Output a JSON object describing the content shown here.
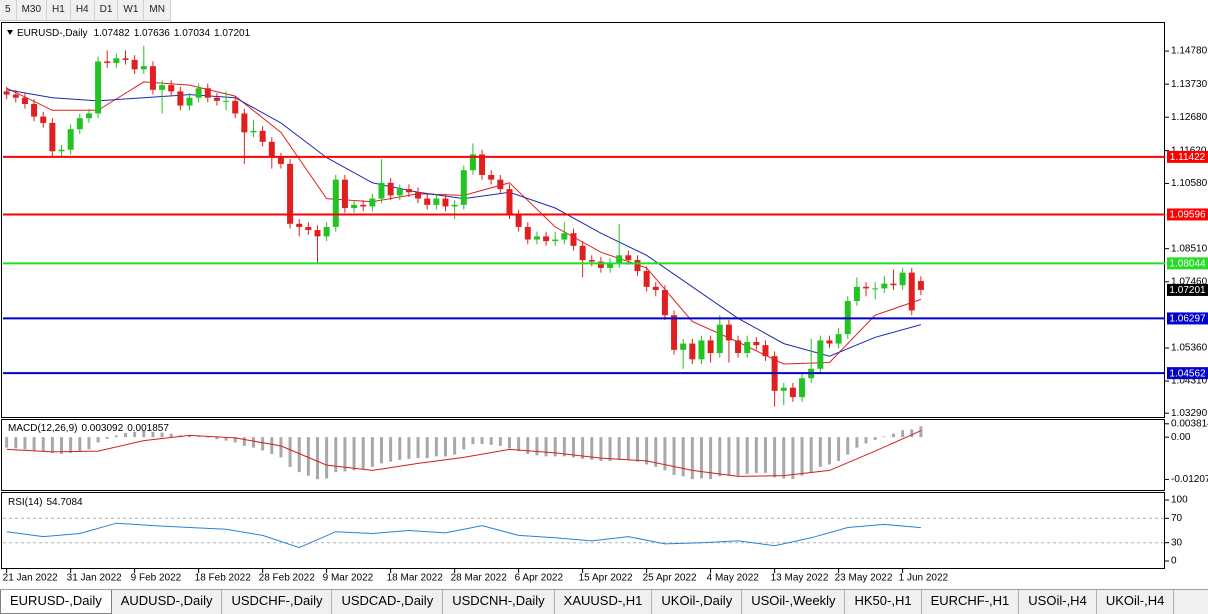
{
  "toolbar": [
    "5",
    "M30",
    "H1",
    "H4",
    "D1",
    "W1",
    "MN"
  ],
  "tabs": [
    "EURUSD-,Daily",
    "AUDUSD-,Daily",
    "USDCHF-,Daily",
    "USDCAD-,Daily",
    "USDCNH-,Daily",
    "XAUUSD-,H1",
    "UKOil-,Daily",
    "USOil-,Weekly",
    "HK50-,H1",
    "EURCHF-,H1",
    "USOil-,H4",
    "UKOil-,H4"
  ],
  "chart_data": [
    {
      "type": "candlestick",
      "title": "EURUSD-,Daily",
      "up_color": "#22c322",
      "down_color": "#e02020",
      "open": [
        1.135,
        1.134,
        1.133,
        1.131,
        1.127,
        1.125,
        1.116,
        1.1165,
        1.123,
        1.1265,
        1.128,
        1.1445,
        1.144,
        1.1455,
        1.145,
        1.142,
        1.143,
        1.1355,
        1.137,
        1.135,
        1.1305,
        1.133,
        1.136,
        1.133,
        1.132,
        1.132,
        1.128,
        1.122,
        1.1225,
        1.119,
        1.114,
        1.112,
        1.093,
        1.092,
        1.091,
        1.089,
        1.092,
        1.107,
        1.098,
        1.099,
        1.0985,
        1.101,
        1.106,
        1.102,
        1.104,
        1.103,
        1.101,
        1.099,
        1.101,
        1.0985,
        1.099,
        1.11,
        1.115,
        1.1085,
        1.107,
        1.104,
        1.096,
        1.092,
        1.088,
        1.089,
        1.0875,
        1.088,
        1.09,
        1.086,
        1.0815,
        1.081,
        1.079,
        1.0805,
        1.083,
        1.0815,
        1.078,
        1.073,
        1.072,
        1.064,
        1.053,
        1.055,
        1.05,
        1.056,
        1.052,
        1.061,
        1.056,
        1.052,
        1.0555,
        1.0545,
        1.051,
        1.04,
        1.041,
        1.038,
        1.044,
        1.047,
        1.056,
        1.055,
        1.058,
        1.0685,
        1.073,
        1.0725,
        1.0725,
        1.074,
        1.0735,
        1.0775,
        1.07482
      ],
      "high": [
        1.1365,
        1.1355,
        1.1345,
        1.1325,
        1.1285,
        1.1265,
        1.118,
        1.1245,
        1.128,
        1.1295,
        1.146,
        1.148,
        1.147,
        1.148,
        1.1465,
        1.1495,
        1.1445,
        1.1385,
        1.1385,
        1.1365,
        1.1345,
        1.1375,
        1.1375,
        1.1345,
        1.135,
        1.1335,
        1.1295,
        1.126,
        1.124,
        1.1205,
        1.1155,
        1.1135,
        1.0945,
        1.0935,
        1.0925,
        1.0935,
        1.1085,
        1.1085,
        1.1005,
        1.1005,
        1.1025,
        1.1135,
        1.1075,
        1.1055,
        1.1055,
        1.1045,
        1.1025,
        1.1025,
        1.1025,
        1.1005,
        1.1115,
        1.1185,
        1.1165,
        1.11,
        1.1085,
        1.1055,
        1.0975,
        1.0935,
        1.0905,
        1.0905,
        1.0905,
        1.0935,
        1.0915,
        1.0875,
        1.083,
        1.0825,
        1.082,
        1.093,
        1.0845,
        1.083,
        1.0795,
        1.0745,
        1.0735,
        1.0655,
        1.0565,
        1.0565,
        1.0575,
        1.0575,
        1.064,
        1.0625,
        1.0575,
        1.0575,
        1.057,
        1.056,
        1.0525,
        1.0425,
        1.0425,
        1.0455,
        1.0565,
        1.0575,
        1.0575,
        1.06,
        1.07,
        1.076,
        1.0745,
        1.0745,
        1.0765,
        1.0785,
        1.079,
        1.079,
        1.07636
      ],
      "low": [
        1.1325,
        1.1315,
        1.1295,
        1.1255,
        1.1235,
        1.1145,
        1.1145,
        1.115,
        1.1215,
        1.125,
        1.1265,
        1.1425,
        1.1425,
        1.1435,
        1.1405,
        1.1405,
        1.134,
        1.128,
        1.1335,
        1.129,
        1.129,
        1.1315,
        1.1315,
        1.1305,
        1.129,
        1.1265,
        1.112,
        1.1205,
        1.1175,
        1.1105,
        1.1105,
        1.0915,
        1.089,
        1.0895,
        1.0805,
        1.0875,
        1.0905,
        1.0965,
        1.0965,
        1.097,
        1.097,
        1.0995,
        1.1005,
        1.1005,
        1.1015,
        1.0995,
        1.0975,
        1.0975,
        1.097,
        1.0945,
        1.0975,
        1.1085,
        1.107,
        1.1055,
        1.1025,
        1.0945,
        1.0905,
        1.0865,
        1.0865,
        1.086,
        1.086,
        1.0865,
        1.0845,
        1.076,
        1.0795,
        1.0775,
        1.0775,
        1.079,
        1.08,
        1.0765,
        1.0715,
        1.07,
        1.0625,
        1.0515,
        1.047,
        1.0485,
        1.0485,
        1.049,
        1.0505,
        1.049,
        1.0505,
        1.0505,
        1.053,
        1.0495,
        1.035,
        1.0355,
        1.0365,
        1.0365,
        1.0425,
        1.0455,
        1.0535,
        1.0535,
        1.0565,
        1.067,
        1.07,
        1.069,
        1.071,
        1.072,
        1.072,
        1.064,
        1.07034
      ],
      "close": [
        1.134,
        1.133,
        1.131,
        1.127,
        1.125,
        1.116,
        1.1165,
        1.123,
        1.1265,
        1.128,
        1.1445,
        1.144,
        1.1455,
        1.145,
        1.142,
        1.143,
        1.1355,
        1.137,
        1.135,
        1.1305,
        1.133,
        1.136,
        1.133,
        1.132,
        1.132,
        1.128,
        1.122,
        1.1225,
        1.119,
        1.114,
        1.112,
        1.093,
        1.092,
        1.091,
        1.089,
        1.092,
        1.107,
        1.098,
        1.099,
        1.0985,
        1.101,
        1.106,
        1.102,
        1.104,
        1.103,
        1.101,
        1.099,
        1.101,
        1.0985,
        1.099,
        1.11,
        1.115,
        1.1085,
        1.107,
        1.104,
        1.096,
        1.092,
        1.088,
        1.089,
        1.0875,
        1.088,
        1.09,
        1.086,
        1.0815,
        1.081,
        1.079,
        1.0805,
        1.083,
        1.0815,
        1.078,
        1.073,
        1.072,
        1.064,
        1.053,
        1.055,
        1.05,
        1.056,
        1.052,
        1.061,
        1.056,
        1.052,
        1.0555,
        1.0545,
        1.051,
        1.04,
        1.041,
        1.038,
        1.044,
        1.047,
        1.056,
        1.055,
        1.058,
        1.0685,
        1.073,
        1.0725,
        1.0725,
        1.074,
        1.0735,
        1.0775,
        1.0655,
        1.07201
      ],
      "moving_averages": [
        {
          "color": "#e02020",
          "x": [
            0,
            5,
            10,
            15,
            20,
            25,
            30,
            35,
            40,
            45,
            50,
            55,
            60,
            65,
            70,
            75,
            80,
            85,
            90,
            95,
            100
          ],
          "values": [
            1.136,
            1.129,
            1.129,
            1.138,
            1.137,
            1.1335,
            1.122,
            1.101,
            1.1,
            1.1025,
            1.102,
            1.106,
            1.092,
            1.084,
            1.079,
            1.062,
            1.0555,
            1.0485,
            1.049,
            1.064,
            1.069
          ]
        },
        {
          "color": "#1c2ab0",
          "x": [
            0,
            5,
            10,
            15,
            20,
            25,
            30,
            35,
            40,
            45,
            50,
            55,
            60,
            65,
            70,
            75,
            80,
            85,
            90,
            95,
            100
          ],
          "values": [
            1.1355,
            1.133,
            1.132,
            1.133,
            1.134,
            1.133,
            1.125,
            1.114,
            1.106,
            1.103,
            1.101,
            1.103,
            1.098,
            1.09,
            1.083,
            1.073,
            1.063,
            1.055,
            1.051,
            1.057,
            1.061
          ]
        }
      ],
      "levels": [
        {
          "value": 1.11422,
          "color": "#ff0000"
        },
        {
          "value": 1.09596,
          "color": "#ff0000"
        },
        {
          "value": 1.08044,
          "color": "#22dd22"
        },
        {
          "value": 1.06297,
          "color": "#0000cc"
        },
        {
          "value": 1.04562,
          "color": "#0000cc"
        }
      ],
      "xlim": [
        -0.4,
        126.7
      ],
      "ylim": [
        1.0317,
        1.1567
      ],
      "xticks": [
        {
          "value": 0,
          "label": "21 Jan 2022"
        },
        {
          "value": 7,
          "label": "31 Jan 2022"
        },
        {
          "value": 14,
          "label": "9 Feb 2022"
        },
        {
          "value": 21,
          "label": "18 Feb 2022"
        },
        {
          "value": 28,
          "label": "28 Feb 2022"
        },
        {
          "value": 35,
          "label": "9 Mar 2022"
        },
        {
          "value": 42,
          "label": "18 Mar 2022"
        },
        {
          "value": 49,
          "label": "28 Mar 2022"
        },
        {
          "value": 56,
          "label": "6 Apr 2022"
        },
        {
          "value": 63,
          "label": "15 Apr 2022"
        },
        {
          "value": 70,
          "label": "25 Apr 2022"
        },
        {
          "value": 77,
          "label": "4 May 2022"
        },
        {
          "value": 84,
          "label": "13 May 2022"
        },
        {
          "value": 91,
          "label": "23 May 2022"
        },
        {
          "value": 98,
          "label": "1 Jun 2022"
        }
      ],
      "yticks": [
        {
          "value": 1.1478,
          "label": "1.14780"
        },
        {
          "value": 1.1373,
          "label": "1.13730"
        },
        {
          "value": 1.1268,
          "label": "1.12680"
        },
        {
          "value": 1.1162,
          "label": "1.11620"
        },
        {
          "value": 1.1058,
          "label": "1.10580"
        },
        {
          "value": 1.0851,
          "label": "1.08510"
        },
        {
          "value": 1.0746,
          "label": "1.07460"
        },
        {
          "value": 1.0536,
          "label": "1.05360"
        },
        {
          "value": 1.0431,
          "label": "1.04310"
        },
        {
          "value": 1.0329,
          "label": "1.03290"
        }
      ]
    },
    {
      "type": "macd",
      "title": "MACD(12,26,9)",
      "histogram_color": "#a8a8a8",
      "histogram": [
        -0.003,
        -0.0032,
        -0.0035,
        -0.0038,
        -0.004,
        -0.0045,
        -0.0048,
        -0.0045,
        -0.004,
        -0.0035,
        -0.0015,
        -0.0005,
        0.0005,
        0.0012,
        0.0015,
        0.0018,
        0.0015,
        0.0013,
        0.001,
        0.0005,
        0.0003,
        0.0002,
        -0.0002,
        -0.0006,
        -0.001,
        -0.0015,
        -0.0025,
        -0.003,
        -0.0038,
        -0.0048,
        -0.0058,
        -0.0085,
        -0.01,
        -0.011,
        -0.012,
        -0.0118,
        -0.01,
        -0.0098,
        -0.0095,
        -0.0092,
        -0.0085,
        -0.0075,
        -0.007,
        -0.0065,
        -0.0062,
        -0.006,
        -0.006,
        -0.0055,
        -0.0055,
        -0.005,
        -0.0035,
        -0.002,
        -0.002,
        -0.0022,
        -0.0025,
        -0.0032,
        -0.004,
        -0.0048,
        -0.0052,
        -0.0055,
        -0.0055,
        -0.0055,
        -0.0058,
        -0.0062,
        -0.0065,
        -0.0068,
        -0.0068,
        -0.0065,
        -0.0066,
        -0.007,
        -0.0078,
        -0.0085,
        -0.0095,
        -0.0108,
        -0.0112,
        -0.012,
        -0.0118,
        -0.012,
        -0.0112,
        -0.011,
        -0.011,
        -0.0105,
        -0.0102,
        -0.0102,
        -0.0115,
        -0.0118,
        -0.012,
        -0.011,
        -0.01,
        -0.0085,
        -0.0078,
        -0.0068,
        -0.005,
        -0.003,
        -0.0018,
        -0.0008,
        0.0002,
        0.001,
        0.002,
        0.0022,
        0.003092
      ],
      "signal": {
        "color": "#d02020",
        "x": [
          0,
          5,
          10,
          15,
          20,
          25,
          30,
          35,
          40,
          45,
          50,
          55,
          60,
          65,
          70,
          75,
          80,
          85,
          90,
          95,
          100
        ],
        "values": [
          -0.0035,
          -0.0042,
          -0.004,
          -0.001,
          0.0005,
          -0.0002,
          -0.0025,
          -0.008,
          -0.0095,
          -0.0075,
          -0.0058,
          -0.0035,
          -0.0045,
          -0.006,
          -0.0068,
          -0.0095,
          -0.0112,
          -0.011,
          -0.0095,
          -0.004,
          0.001857
        ]
      },
      "ylim": [
        -0.0151,
        0.0049
      ],
      "yticks": [
        0.003814,
        {
          "value": 0,
          "label": "0.00"
        },
        -0.012077
      ]
    },
    {
      "type": "line",
      "title": "RSI(14)",
      "color": "#2a82d4",
      "level_color": "#b0b0b0",
      "x": [
        0,
        4,
        8,
        12,
        16,
        20,
        24,
        28,
        32,
        36,
        40,
        44,
        48,
        52,
        56,
        60,
        64,
        68,
        72,
        76,
        80,
        84,
        88,
        92,
        96,
        100
      ],
      "values": [
        48,
        40,
        45,
        62,
        58,
        55,
        52,
        42,
        22,
        48,
        45,
        50,
        46,
        58,
        42,
        38,
        33,
        40,
        28,
        30,
        33,
        25,
        38,
        55,
        60,
        54.7084
      ],
      "levels": [
        70,
        30
      ],
      "ylim": [
        -11.5,
        111.5
      ],
      "yticks": [
        100,
        70,
        30,
        0
      ]
    }
  ]
}
